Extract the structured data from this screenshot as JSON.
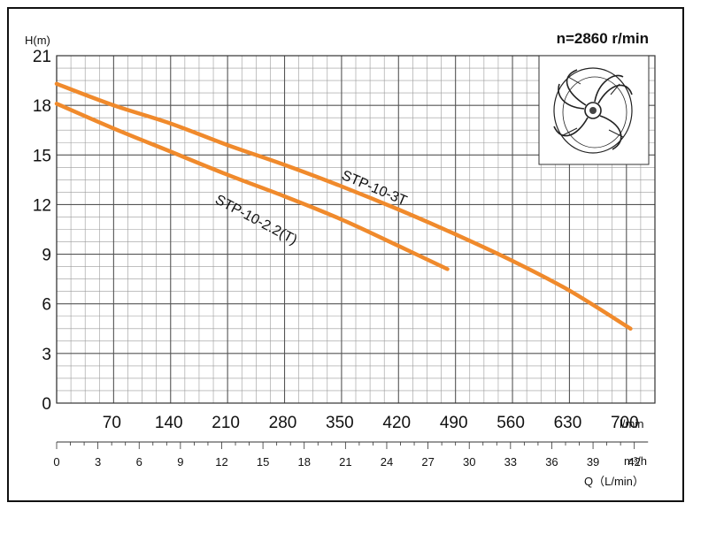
{
  "chart_data": {
    "type": "line",
    "title": "n=2860 r/min",
    "ylabel": "H(m)",
    "x_primary_unit": "l/min",
    "x_secondary_unit": "m³/h",
    "xlabel": "Q（L/min）",
    "xlim": [
      0,
      700
    ],
    "ylim": [
      0,
      21
    ],
    "y_ticks": [
      "0",
      "3",
      "6",
      "9",
      "12",
      "15",
      "18",
      "21"
    ],
    "x_ticks": [
      "70",
      "140",
      "210",
      "280",
      "350",
      "420",
      "490",
      "560",
      "630",
      "700"
    ],
    "x_secondary_ticks": [
      "0",
      "3",
      "6",
      "9",
      "12",
      "15",
      "18",
      "21",
      "24",
      "27",
      "30",
      "33",
      "36",
      "39",
      "42"
    ],
    "grid": true,
    "line_color": "#f08a2c",
    "series": [
      {
        "name": "STP-10-3T",
        "x": [
          0,
          70,
          140,
          210,
          280,
          350,
          420,
          490,
          560,
          630,
          705
        ],
        "y": [
          19.3,
          18.0,
          16.9,
          15.6,
          14.4,
          13.1,
          11.7,
          10.2,
          8.6,
          6.8,
          4.5
        ]
      },
      {
        "name": "STP-10-2.2(T)",
        "x": [
          0,
          70,
          140,
          210,
          280,
          350,
          420,
          480
        ],
        "y": [
          18.1,
          16.6,
          15.2,
          13.8,
          12.5,
          11.1,
          9.5,
          8.1
        ]
      }
    ]
  },
  "inset": {
    "icon": "impeller-icon"
  }
}
